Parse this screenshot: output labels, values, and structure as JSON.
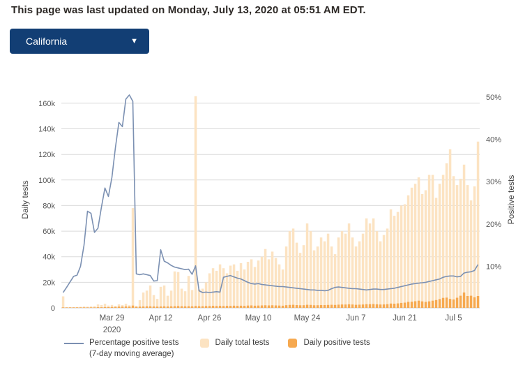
{
  "header": {
    "last_updated": "This page was last updated on Monday, July 13, 2020 at 05:51 AM EDT."
  },
  "state_selector": {
    "value": "California",
    "icon": "chevron-down"
  },
  "colors": {
    "accent_navy": "#123E74",
    "line": "#7B90B2",
    "bar_total": "#FCE3C2",
    "bar_positive": "#F6A950",
    "grid": "#DBDBDB",
    "baseline": "#C9C9C9",
    "axis_text": "#585858",
    "header_text": "#2D2926"
  },
  "chart_data": {
    "type": "combo",
    "title": "",
    "left_axis": {
      "title": "Daily tests",
      "ticks": [
        "0",
        "20k",
        "40k",
        "60k",
        "80k",
        "100k",
        "120k",
        "140k",
        "160k"
      ],
      "tick_values": [
        0,
        20,
        40,
        60,
        80,
        100,
        120,
        140,
        160
      ],
      "range_thousands": [
        0,
        168
      ]
    },
    "right_axis": {
      "title": "Positive tests",
      "ticks": [
        "10%",
        "20%",
        "30%",
        "40%",
        "50%"
      ],
      "tick_values": [
        10,
        20,
        30,
        40,
        50
      ],
      "range_percent": [
        0,
        50.5
      ]
    },
    "x_axis": {
      "ticks": [
        {
          "label": "Mar 29",
          "sub": "2020",
          "index": 14
        },
        {
          "label": "Apr 12",
          "index": 28
        },
        {
          "label": "Apr 26",
          "index": 42
        },
        {
          "label": "May 10",
          "index": 56
        },
        {
          "label": "May 24",
          "index": 70
        },
        {
          "label": "Jun 7",
          "index": 84
        },
        {
          "label": "Jun 21",
          "index": 98
        },
        {
          "label": "Jul 5",
          "index": 112
        }
      ]
    },
    "x_dates": [
      "Mar 15",
      "Mar 16",
      "Mar 17",
      "Mar 18",
      "Mar 19",
      "Mar 20",
      "Mar 21",
      "Mar 22",
      "Mar 23",
      "Mar 24",
      "Mar 25",
      "Mar 26",
      "Mar 27",
      "Mar 28",
      "Mar 29",
      "Mar 30",
      "Mar 31",
      "Apr 1",
      "Apr 2",
      "Apr 3",
      "Apr 4",
      "Apr 5",
      "Apr 6",
      "Apr 7",
      "Apr 8",
      "Apr 9",
      "Apr 10",
      "Apr 11",
      "Apr 12",
      "Apr 13",
      "Apr 14",
      "Apr 15",
      "Apr 16",
      "Apr 17",
      "Apr 18",
      "Apr 19",
      "Apr 20",
      "Apr 21",
      "Apr 22",
      "Apr 23",
      "Apr 24",
      "Apr 25",
      "Apr 26",
      "Apr 27",
      "Apr 28",
      "Apr 29",
      "Apr 30",
      "May 1",
      "May 2",
      "May 3",
      "May 4",
      "May 5",
      "May 6",
      "May 7",
      "May 8",
      "May 9",
      "May 10",
      "May 11",
      "May 12",
      "May 13",
      "May 14",
      "May 15",
      "May 16",
      "May 17",
      "May 18",
      "May 19",
      "May 20",
      "May 21",
      "May 22",
      "May 23",
      "May 24",
      "May 25",
      "May 26",
      "May 27",
      "May 28",
      "May 29",
      "May 30",
      "May 31",
      "Jun 1",
      "Jun 2",
      "Jun 3",
      "Jun 4",
      "Jun 5",
      "Jun 6",
      "Jun 7",
      "Jun 8",
      "Jun 9",
      "Jun 10",
      "Jun 11",
      "Jun 12",
      "Jun 13",
      "Jun 14",
      "Jun 15",
      "Jun 16",
      "Jun 17",
      "Jun 18",
      "Jun 19",
      "Jun 20",
      "Jun 21",
      "Jun 22",
      "Jun 23",
      "Jun 24",
      "Jun 25",
      "Jun 26",
      "Jun 27",
      "Jun 28",
      "Jun 29",
      "Jun 30",
      "Jul 1",
      "Jul 2",
      "Jul 3",
      "Jul 4",
      "Jul 5",
      "Jul 6",
      "Jul 7",
      "Jul 8",
      "Jul 9",
      "Jul 10",
      "Jul 11",
      "Jul 12"
    ],
    "series": [
      {
        "name": "Daily total tests",
        "type": "bar",
        "axis": "left",
        "unit": "thousands",
        "values": [
          9,
          0.4,
          0.5,
          0.6,
          0.7,
          0.9,
          1.1,
          1.0,
          1.2,
          1.4,
          2.7,
          2.2,
          3.2,
          1.8,
          2.3,
          1.5,
          2.8,
          2.2,
          3.2,
          2.0,
          78,
          1.6,
          6,
          12,
          13.5,
          17.5,
          10,
          7,
          16.5,
          17.5,
          9.5,
          13.5,
          28.5,
          28,
          15,
          13,
          25,
          14,
          165.5,
          14.5,
          15,
          20,
          27,
          31,
          29,
          34,
          31,
          27,
          33,
          34,
          29,
          35,
          30,
          36,
          38,
          32,
          37,
          40,
          46,
          38,
          44,
          39,
          34,
          30,
          48,
          60,
          62,
          51,
          43,
          49,
          66,
          60,
          45,
          48,
          55,
          52,
          58,
          48,
          42,
          55,
          60,
          58,
          66,
          55,
          48,
          52,
          58,
          70,
          66,
          70,
          60,
          52,
          57,
          62,
          77,
          72,
          75,
          80,
          81,
          88,
          94,
          97,
          102,
          89,
          92,
          104,
          104,
          86,
          97,
          104,
          113,
          124,
          103,
          96,
          101,
          112,
          96,
          84,
          95,
          130
        ]
      },
      {
        "name": "Daily positive tests",
        "type": "bar",
        "axis": "left",
        "unit": "thousands",
        "values": [
          0.4,
          0.1,
          0.1,
          0.15,
          0.15,
          0.2,
          0.3,
          0.3,
          0.35,
          0.4,
          0.5,
          0.5,
          0.6,
          0.6,
          0.7,
          0.8,
          1.0,
          1.0,
          1.1,
          1.0,
          1.8,
          0.8,
          1.0,
          1.1,
          1.2,
          1.2,
          1.1,
          1.0,
          1.1,
          1.2,
          1.1,
          1.2,
          1.3,
          1.4,
          1.3,
          1.2,
          1.3,
          1.2,
          1.5,
          1.3,
          1.3,
          1.4,
          1.5,
          1.6,
          1.5,
          1.6,
          1.5,
          1.6,
          1.6,
          1.7,
          1.6,
          1.7,
          1.6,
          1.8,
          1.9,
          1.7,
          1.8,
          1.9,
          2.0,
          1.9,
          2.0,
          1.9,
          1.8,
          1.7,
          2.1,
          2.3,
          2.4,
          2.2,
          2.0,
          2.1,
          2.4,
          2.3,
          2.0,
          2.1,
          2.2,
          2.2,
          2.3,
          2.4,
          2.3,
          2.5,
          2.6,
          2.6,
          2.8,
          2.6,
          2.4,
          2.5,
          2.6,
          2.9,
          2.9,
          3.0,
          2.8,
          2.6,
          2.7,
          2.9,
          3.4,
          3.3,
          3.5,
          3.9,
          4.1,
          4.7,
          4.8,
          5.2,
          5.6,
          5.1,
          4.7,
          5.1,
          5.6,
          6.1,
          6.9,
          7.8,
          8.0,
          7.0,
          6.6,
          7.9,
          9.5,
          12.0,
          9.3,
          9.5,
          8.3,
          9.3
        ]
      },
      {
        "name": "Percentage positive tests (7-day moving average)",
        "type": "line",
        "axis": "right",
        "unit": "percent",
        "values": [
          3.8,
          5.0,
          6.3,
          7.6,
          7.9,
          10.0,
          15.0,
          23.0,
          22.5,
          18.0,
          19.0,
          24.0,
          28.5,
          26.5,
          31.0,
          38.0,
          44.0,
          43.0,
          49.5,
          50.5,
          49.0,
          8.2,
          8.0,
          8.2,
          8.0,
          7.8,
          6.5,
          6.6,
          13.9,
          11.2,
          10.8,
          10.2,
          9.8,
          9.6,
          9.4,
          9.2,
          9.3,
          8.1,
          10.1,
          4.2,
          3.8,
          3.9,
          3.8,
          3.9,
          4.0,
          3.9,
          7.4,
          7.6,
          7.8,
          7.5,
          7.2,
          7.0,
          6.6,
          6.2,
          5.9,
          5.8,
          5.9,
          5.7,
          5.6,
          5.5,
          5.4,
          5.3,
          5.2,
          5.2,
          5.1,
          5.0,
          4.9,
          4.8,
          4.7,
          4.6,
          4.5,
          4.4,
          4.4,
          4.3,
          4.3,
          4.2,
          4.3,
          4.7,
          5.0,
          5.1,
          5.0,
          4.9,
          4.8,
          4.7,
          4.7,
          4.6,
          4.5,
          4.4,
          4.5,
          4.6,
          4.6,
          4.5,
          4.5,
          4.6,
          4.7,
          4.8,
          5.0,
          5.2,
          5.4,
          5.6,
          5.8,
          5.9,
          6.0,
          6.1,
          6.2,
          6.4,
          6.6,
          6.8,
          7.0,
          7.4,
          7.6,
          7.7,
          7.7,
          7.5,
          7.6,
          8.4,
          8.6,
          8.7,
          9.0,
          10.4
        ]
      }
    ],
    "legend": [
      {
        "label": "Percentage positive tests",
        "label2": "(7-day moving average)",
        "swatch": "line"
      },
      {
        "label": "Daily total tests",
        "swatch": "square-light"
      },
      {
        "label": "Daily positive tests",
        "swatch": "square-dark"
      }
    ]
  }
}
